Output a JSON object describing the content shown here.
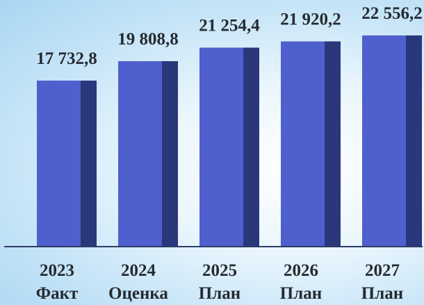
{
  "chart_data": {
    "type": "bar",
    "categories": [
      "2023",
      "2024",
      "2025",
      "2026",
      "2027"
    ],
    "category_sublabels": [
      "Факт",
      "Оценка",
      "План",
      "План",
      "План"
    ],
    "values": [
      17732.8,
      19808.8,
      21254.4,
      21920.2,
      22556.2
    ],
    "value_labels": [
      "17 732,8",
      "19 808,8",
      "21 254,4",
      "21 920,2",
      "22 556,2"
    ],
    "ylim": [
      0,
      23000
    ],
    "grid": false,
    "legend": "none",
    "colors": {
      "bar_front": "#4f5fcd",
      "bar_side": "#2a377a",
      "axis": "#2e3b66"
    }
  }
}
